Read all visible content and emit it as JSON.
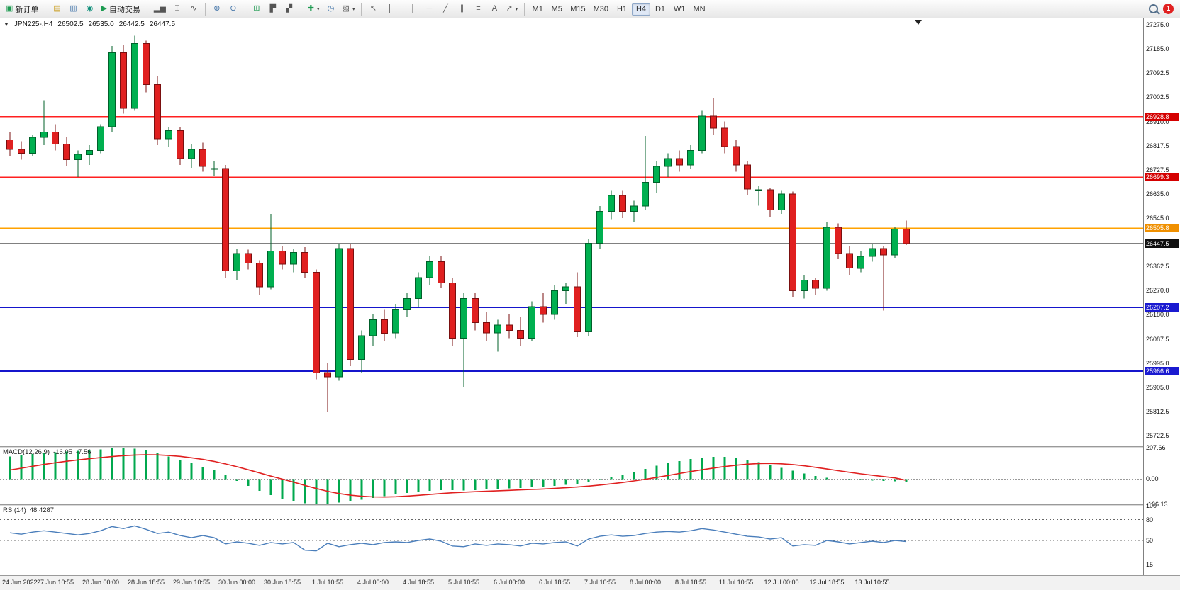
{
  "toolbar": {
    "new_order_label": "新订单",
    "auto_trading_label": "自动交易",
    "timeframes": [
      "M1",
      "M5",
      "M15",
      "M30",
      "H1",
      "H4",
      "D1",
      "W1",
      "MN"
    ],
    "active_timeframe": "H4",
    "notification_count": "1"
  },
  "icons": {
    "new_order": "▣",
    "chart_stack": "▤",
    "profiles": "▥",
    "data_window": "◉",
    "autotrade": "▶",
    "bar_chart": "▂▅",
    "candle_chart": "⌶",
    "line_chart": "∿",
    "zoom_in": "⊕",
    "zoom_out": "⊖",
    "tile_windows": "⊞",
    "arrange_windows": "▛",
    "cascade_windows": "▞",
    "add_chart": "✚",
    "period": "◷",
    "template": "▧",
    "cursor": "↖",
    "crosshair": "┼",
    "vline": "│",
    "hline": "─",
    "trendline": "╱",
    "channel": "∥",
    "fibonacci": "≡",
    "text": "A",
    "arrows": "↗",
    "dropdown": "▾",
    "collapse": "▼"
  },
  "chart": {
    "symbol_label": "JPN225-,H4",
    "open": "26502.5",
    "high": "26535.0",
    "low": "26442.5",
    "close": "26447.5"
  },
  "indicators": {
    "macd": {
      "name": "MACD(12,26,9)",
      "main_value": "-16.05",
      "signal_value": "-7.56"
    },
    "rsi": {
      "name": "RSI(14)",
      "value": "48.4287"
    }
  },
  "chart_data": {
    "type": "candlestick",
    "symbol": "JPN225-",
    "timeframe": "H4",
    "price_max": 27300,
    "price_min": 25682,
    "colors": {
      "up": "#00b050",
      "up_border": "#00602a",
      "down": "#e02020",
      "down_border": "#7a0f0f",
      "macd_hist": "#00a84e",
      "macd_signal": "#e02020",
      "rsi_line": "#4a7ebb"
    },
    "candles": [
      [
        26840,
        26870,
        26780,
        26805
      ],
      [
        26805,
        26835,
        26765,
        26790
      ],
      [
        26790,
        26860,
        26780,
        26850
      ],
      [
        26850,
        26990,
        26820,
        26870
      ],
      [
        26870,
        26900,
        26800,
        26825
      ],
      [
        26825,
        26850,
        26740,
        26765
      ],
      [
        26765,
        26800,
        26700,
        26785
      ],
      [
        26785,
        26820,
        26745,
        26800
      ],
      [
        26800,
        26900,
        26790,
        26890
      ],
      [
        26890,
        27195,
        26870,
        27170
      ],
      [
        27170,
        27200,
        26940,
        26960
      ],
      [
        26960,
        27235,
        26950,
        27205
      ],
      [
        27205,
        27215,
        27020,
        27050
      ],
      [
        27050,
        27080,
        26820,
        26845
      ],
      [
        26845,
        26890,
        26815,
        26875
      ],
      [
        26875,
        26890,
        26745,
        26770
      ],
      [
        26770,
        26825,
        26735,
        26805
      ],
      [
        26805,
        26830,
        26720,
        26740
      ],
      [
        26730,
        26760,
        26705,
        26732
      ],
      [
        26732,
        26745,
        26320,
        26345
      ],
      [
        26345,
        26430,
        26310,
        26410
      ],
      [
        26410,
        26425,
        26350,
        26375
      ],
      [
        26375,
        26385,
        26255,
        26285
      ],
      [
        26285,
        26560,
        26275,
        26420
      ],
      [
        26420,
        26440,
        26350,
        26370
      ],
      [
        26370,
        26430,
        26340,
        26415
      ],
      [
        26415,
        26435,
        26320,
        26340
      ],
      [
        26340,
        26350,
        25935,
        25960
      ],
      [
        25960,
        25995,
        25810,
        25945
      ],
      [
        25945,
        26445,
        25930,
        26430
      ],
      [
        26430,
        26445,
        25985,
        26010
      ],
      [
        26010,
        26120,
        25960,
        26100
      ],
      [
        26100,
        26180,
        26060,
        26160
      ],
      [
        26160,
        26200,
        26080,
        26110
      ],
      [
        26110,
        26220,
        26090,
        26200
      ],
      [
        26200,
        26260,
        26170,
        26240
      ],
      [
        26240,
        26340,
        26210,
        26320
      ],
      [
        26320,
        26400,
        26290,
        26380
      ],
      [
        26380,
        26400,
        26280,
        26300
      ],
      [
        26300,
        26320,
        26060,
        26090
      ],
      [
        26090,
        26260,
        25905,
        26240
      ],
      [
        26240,
        26260,
        26120,
        26150
      ],
      [
        26150,
        26190,
        26080,
        26110
      ],
      [
        26110,
        26160,
        26040,
        26140
      ],
      [
        26140,
        26180,
        26090,
        26120
      ],
      [
        26120,
        26170,
        26060,
        26090
      ],
      [
        26090,
        26230,
        26080,
        26210
      ],
      [
        26210,
        26260,
        26150,
        26180
      ],
      [
        26180,
        26290,
        26160,
        26270
      ],
      [
        26270,
        26300,
        26220,
        26285
      ],
      [
        26285,
        26340,
        26095,
        26115
      ],
      [
        26115,
        26465,
        26100,
        26450
      ],
      [
        26450,
        26590,
        26430,
        26570
      ],
      [
        26570,
        26650,
        26540,
        26630
      ],
      [
        26630,
        26650,
        26545,
        26570
      ],
      [
        26570,
        26610,
        26530,
        26590
      ],
      [
        26590,
        26855,
        26575,
        26680
      ],
      [
        26680,
        26760,
        26640,
        26740
      ],
      [
        26740,
        26790,
        26700,
        26770
      ],
      [
        26770,
        26800,
        26720,
        26745
      ],
      [
        26745,
        26820,
        26730,
        26800
      ],
      [
        26800,
        26950,
        26790,
        26930
      ],
      [
        26930,
        27000,
        26860,
        26885
      ],
      [
        26885,
        26910,
        26790,
        26815
      ],
      [
        26815,
        26840,
        26720,
        26745
      ],
      [
        26745,
        26760,
        26630,
        26655
      ],
      [
        26650,
        26668,
        26592,
        26652
      ],
      [
        26652,
        26660,
        26550,
        26575
      ],
      [
        26575,
        26650,
        26560,
        26635
      ],
      [
        26635,
        26645,
        26245,
        26270
      ],
      [
        26270,
        26330,
        26240,
        26310
      ],
      [
        26310,
        26320,
        26255,
        26280
      ],
      [
        26280,
        26530,
        26270,
        26510
      ],
      [
        26510,
        26525,
        26390,
        26410
      ],
      [
        26410,
        26440,
        26330,
        26355
      ],
      [
        26355,
        26420,
        26340,
        26400
      ],
      [
        26400,
        26445,
        26380,
        26430
      ],
      [
        26430,
        26440,
        26195,
        26405
      ],
      [
        26405,
        26510,
        26395,
        26502.5
      ],
      [
        26502.5,
        26535,
        26442.5,
        26447.5
      ]
    ],
    "hlines": [
      {
        "value": 26928.8,
        "color": "#ff2020",
        "width": 1.6
      },
      {
        "value": 26699.3,
        "color": "#ff2020",
        "width": 1.6
      },
      {
        "value": 26505.8,
        "color": "#ffa200",
        "width": 2
      },
      {
        "value": 26447.5,
        "color": "#000000",
        "width": 1
      },
      {
        "value": 26207.2,
        "color": "#1515cc",
        "width": 2
      },
      {
        "value": 25966.6,
        "color": "#1515cc",
        "width": 2
      }
    ],
    "price_axis_labels": [
      "27275.0",
      "27185.0",
      "27092.5",
      "27002.5",
      "26910.0",
      "26817.5",
      "26727.5",
      "26635.0",
      "26545.0",
      "26362.5",
      "26270.0",
      "26180.0",
      "26087.5",
      "25995.0",
      "25905.0",
      "25812.5",
      "25722.5"
    ],
    "price_tags": [
      {
        "label": "26928.8",
        "value": 26928.8,
        "bg": "#d40000"
      },
      {
        "label": "26699.3",
        "value": 26699.3,
        "bg": "#d40000"
      },
      {
        "label": "26505.8",
        "value": 26505.8,
        "bg": "#f09000"
      },
      {
        "label": "26447.5",
        "value": 26447.5,
        "bg": "#101010"
      },
      {
        "label": "26207.2",
        "value": 26207.2,
        "bg": "#1a1ad0"
      },
      {
        "label": "25966.6",
        "value": 25966.6,
        "bg": "#1a1ad0"
      }
    ],
    "macd": {
      "max": 207.66,
      "min": -166.13,
      "axis": [
        {
          "label": "207.66",
          "value": 207.66
        },
        {
          "label": "0.00",
          "value": 0
        },
        {
          "label": "-166.13",
          "value": -166.13
        }
      ],
      "histogram": [
        150,
        158,
        165,
        172,
        178,
        182,
        186,
        190,
        196,
        202,
        207.66,
        200,
        188,
        170,
        150,
        128,
        105,
        82,
        58,
        25,
        -12,
        -45,
        -78,
        -105,
        -128,
        -148,
        -158,
        -166.13,
        -162,
        -154,
        -146,
        -136,
        -124,
        -112,
        -101,
        -92,
        -85,
        -78,
        -73,
        -72,
        -74,
        -72,
        -68,
        -64,
        -61,
        -58,
        -54,
        -50,
        -45,
        -38,
        -32,
        -20,
        -5,
        12,
        30,
        48,
        68,
        88,
        106,
        120,
        132,
        142,
        148,
        148,
        140,
        128,
        112,
        94,
        75,
        55,
        36,
        20,
        8,
        0,
        -5,
        -8,
        -10,
        -12,
        -14,
        -16.05
      ],
      "signal": [
        60,
        72,
        85,
        97,
        108,
        118,
        127,
        135,
        142,
        149,
        155,
        159,
        161,
        160,
        156,
        150,
        141,
        130,
        117,
        100,
        82,
        62,
        41,
        20,
        0,
        -20,
        -42,
        -62,
        -80,
        -95,
        -106,
        -113,
        -117,
        -118,
        -116,
        -112,
        -107,
        -101,
        -95,
        -90,
        -86,
        -83,
        -80,
        -77,
        -74,
        -71,
        -68,
        -65,
        -61,
        -57,
        -52,
        -46,
        -39,
        -31,
        -22,
        -12,
        -1,
        11,
        24,
        37,
        50,
        62,
        73,
        83,
        92,
        99,
        103,
        104,
        101,
        96,
        88,
        78,
        67,
        56,
        45,
        35,
        26,
        17,
        8,
        -7.56
      ]
    },
    "rsi": {
      "max": 100,
      "min": 0,
      "levels": [
        80,
        50,
        15
      ],
      "axis": [
        {
          "label": "100",
          "value": 100
        },
        {
          "label": "80",
          "value": 80
        },
        {
          "label": "50",
          "value": 50
        },
        {
          "label": "15",
          "value": 15
        }
      ],
      "values": [
        61,
        59,
        62,
        64,
        62,
        60,
        58,
        60,
        64,
        70,
        67,
        71,
        66,
        60,
        62,
        57,
        54,
        57,
        54,
        45,
        48,
        46,
        43,
        47,
        45,
        47,
        36,
        35,
        46,
        41,
        44,
        46,
        44,
        47,
        48,
        47,
        50,
        52,
        49,
        42,
        41,
        45,
        43,
        45,
        44,
        42,
        46,
        45,
        47,
        48,
        42,
        52,
        56,
        58,
        56,
        57,
        60,
        62,
        63,
        62,
        64,
        67,
        65,
        62,
        59,
        56,
        55,
        52,
        54,
        42,
        44,
        43,
        50,
        48,
        45,
        47,
        49,
        47,
        50,
        48.4287
      ]
    },
    "time_labels": [
      "24 Jun 2022",
      "27 Jun 10:55",
      "28 Jun 00:00",
      "28 Jun 18:55",
      "29 Jun 10:55",
      "30 Jun 00:00",
      "30 Jun 18:55",
      "1 Jul 10:55",
      "4 Jul 00:00",
      "4 Jul 18:55",
      "5 Jul 10:55",
      "6 Jul 00:00",
      "6 Jul 18:55",
      "7 Jul 10:55",
      "8 Jul 00:00",
      "8 Jul 18:55",
      "11 Jul 10:55",
      "12 Jul 00:00",
      "12 Jul 18:55",
      "13 Jul 10:55"
    ],
    "label_every_n_candles": 4
  }
}
